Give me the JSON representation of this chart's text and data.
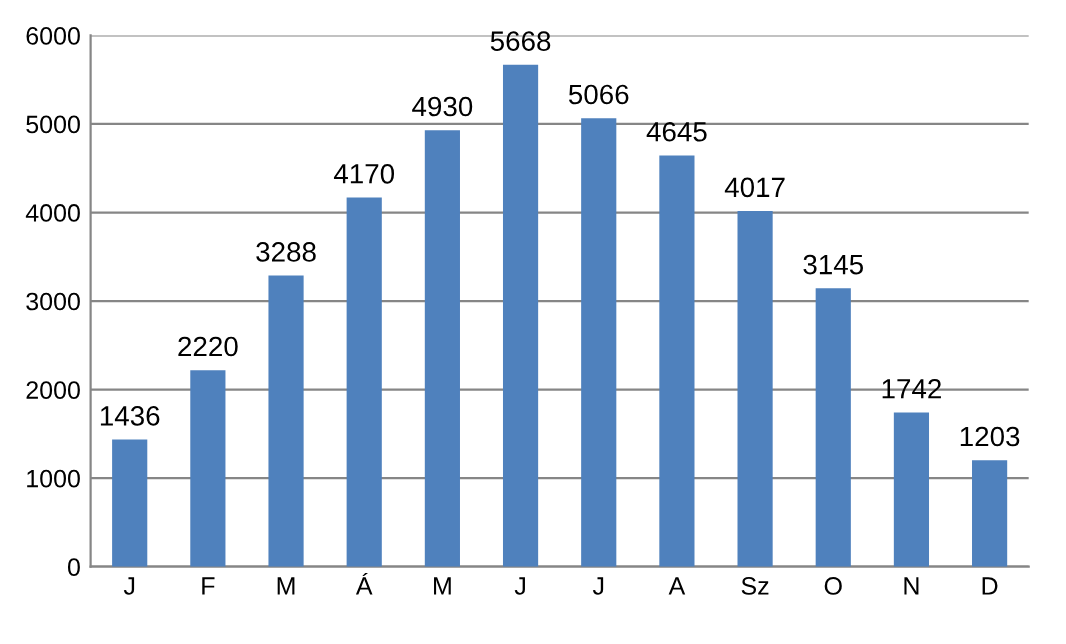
{
  "chart_data": {
    "type": "bar",
    "categories": [
      "J",
      "F",
      "M",
      "Á",
      "M",
      "J",
      "J",
      "A",
      "Sz",
      "O",
      "N",
      "D"
    ],
    "values": [
      1436,
      2220,
      3288,
      4170,
      4930,
      5668,
      5066,
      4645,
      4017,
      3145,
      1742,
      1203
    ],
    "color": "#4f81bd",
    "ylim": [
      0,
      6000
    ],
    "yticks": [
      0,
      1000,
      2000,
      3000,
      4000,
      5000,
      6000
    ],
    "grid": "y",
    "data_labels": true,
    "legend": false
  }
}
